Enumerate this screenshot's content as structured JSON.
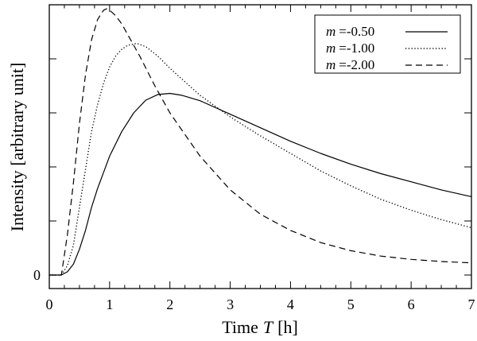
{
  "chart_data": {
    "type": "line",
    "title": "",
    "xlabel": "Time",
    "xlabel_var": "T",
    "xlabel_unit": "[h]",
    "ylabel": "Intensity [arbitrary unit]",
    "xlim": [
      0,
      7
    ],
    "ylim": [
      -0.05,
      1.0
    ],
    "grid": false,
    "legend_position": "top-right",
    "x_ticks": [
      "0",
      "1",
      "2",
      "3",
      "4",
      "5",
      "6",
      "7"
    ],
    "y_ticks": [
      "0"
    ],
    "series": [
      {
        "name": "m =-0.50",
        "var": "m",
        "value": "=-0.50",
        "style": "solid",
        "x": [
          0.0,
          0.2,
          0.3,
          0.4,
          0.5,
          0.6,
          0.7,
          0.8,
          1.0,
          1.2,
          1.4,
          1.6,
          1.8,
          2.0,
          2.2,
          2.5,
          3.0,
          3.5,
          4.0,
          4.5,
          5.0,
          5.5,
          6.0,
          6.5,
          7.0
        ],
        "values": [
          0.0,
          0.0,
          0.012,
          0.04,
          0.095,
          0.165,
          0.25,
          0.32,
          0.44,
          0.53,
          0.6,
          0.647,
          0.668,
          0.672,
          0.665,
          0.645,
          0.595,
          0.545,
          0.495,
          0.45,
          0.41,
          0.375,
          0.345,
          0.315,
          0.29
        ]
      },
      {
        "name": "m =-1.00",
        "var": "m",
        "value": "=-1.00",
        "style": "dotted",
        "x": [
          0.0,
          0.2,
          0.3,
          0.4,
          0.5,
          0.6,
          0.7,
          0.8,
          0.9,
          1.0,
          1.1,
          1.2,
          1.3,
          1.45,
          1.6,
          1.8,
          2.0,
          2.5,
          3.0,
          3.5,
          4.0,
          4.5,
          5.0,
          5.5,
          6.0,
          6.5,
          7.0
        ],
        "values": [
          0.0,
          0.0,
          0.035,
          0.11,
          0.25,
          0.39,
          0.53,
          0.63,
          0.71,
          0.77,
          0.81,
          0.835,
          0.85,
          0.857,
          0.845,
          0.81,
          0.765,
          0.665,
          0.585,
          0.515,
          0.45,
          0.385,
          0.33,
          0.28,
          0.24,
          0.205,
          0.175
        ]
      },
      {
        "name": "m =-2.00",
        "var": "m",
        "value": "=-2.00",
        "style": "dashed",
        "x": [
          0.0,
          0.2,
          0.3,
          0.4,
          0.5,
          0.6,
          0.7,
          0.8,
          0.9,
          0.95,
          1.0,
          1.1,
          1.2,
          1.3,
          1.5,
          1.75,
          2.0,
          2.5,
          3.0,
          3.5,
          4.0,
          4.5,
          5.0,
          5.5,
          6.0,
          6.5,
          7.0
        ],
        "values": [
          0.0,
          0.0,
          0.15,
          0.34,
          0.56,
          0.74,
          0.87,
          0.945,
          0.98,
          0.985,
          0.98,
          0.96,
          0.93,
          0.89,
          0.81,
          0.7,
          0.6,
          0.44,
          0.315,
          0.225,
          0.165,
          0.12,
          0.09,
          0.07,
          0.058,
          0.05,
          0.045
        ]
      }
    ]
  }
}
